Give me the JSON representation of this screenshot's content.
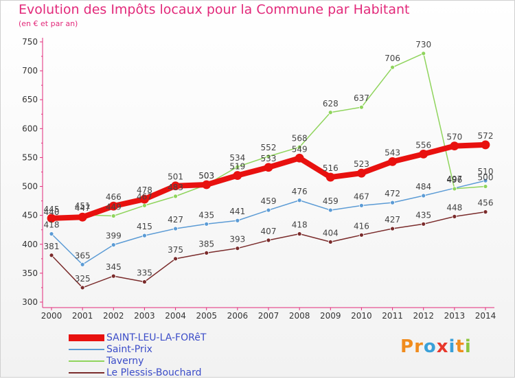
{
  "title": "Evolution des Impôts locaux pour la Commune par Habitant",
  "subtitle": "(en € et par an)",
  "logo": {
    "letters": [
      "P",
      "r",
      "o",
      "x",
      "i",
      "t",
      "i"
    ],
    "colors": [
      "#f08c1e",
      "#f08c1e",
      "#3aa0d8",
      "#e8382c",
      "#3aa0d8",
      "#f08c1e",
      "#8cc63f"
    ]
  },
  "chart_data": {
    "type": "line",
    "title": "Evolution des Impôts locaux pour la Commune par Habitant",
    "subtitle": "(en € et par an)",
    "xlabel": "",
    "ylabel": "",
    "ylim": [
      300,
      750
    ],
    "yticks": [
      300,
      350,
      400,
      450,
      500,
      550,
      600,
      650,
      700,
      750
    ],
    "x": [
      "2000",
      "2001",
      "2002",
      "2003",
      "2004",
      "2005",
      "2006",
      "2007",
      "2008",
      "2009",
      "2010",
      "2011",
      "2012",
      "2013",
      "2014"
    ],
    "grid": false,
    "legend": "bottom-left",
    "series": [
      {
        "name": "SAINT-LEU-LA-FORêT",
        "color": "#e8110f",
        "width": 8,
        "values": [
          445,
          447,
          466,
          478,
          501,
          503,
          519,
          533,
          549,
          516,
          523,
          543,
          556,
          570,
          572
        ]
      },
      {
        "name": "Saint-Prix",
        "color": "#5b9bd5",
        "width": 1.5,
        "values": [
          418,
          365,
          399,
          415,
          427,
          435,
          441,
          459,
          476,
          459,
          467,
          472,
          484,
          497,
          510
        ]
      },
      {
        "name": "Taverny",
        "color": "#8fd45c",
        "width": 1.5,
        "values": [
          440,
          451,
          449,
          467,
          483,
          503,
          534,
          552,
          568,
          628,
          637,
          706,
          730,
          496,
          500
        ]
      },
      {
        "name": "Le Plessis-Bouchard",
        "color": "#7a2b2b",
        "width": 1.5,
        "values": [
          381,
          325,
          345,
          335,
          375,
          385,
          393,
          407,
          418,
          404,
          416,
          427,
          435,
          448,
          456
        ]
      }
    ]
  }
}
